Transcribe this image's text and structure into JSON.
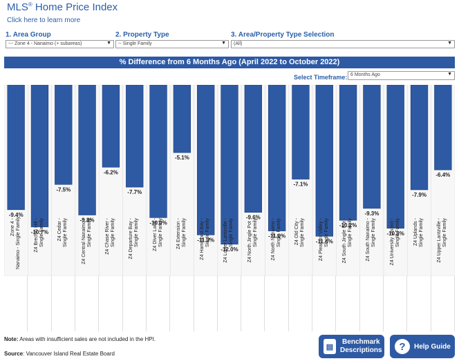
{
  "header": {
    "title": "MLS",
    "title_reg": "®",
    "title_rest": " Home Price Index",
    "learn_more": "Click here to learn more"
  },
  "filters": [
    {
      "num": "1.",
      "label": "Area Group",
      "value": "--- Zone 4 - Nanaimo (+ subareas)"
    },
    {
      "num": "2.",
      "label": "Property Type",
      "value": "-- Single Family"
    },
    {
      "num": "3.",
      "label": "Area/Property Type Selection",
      "value": "(All)"
    }
  ],
  "banner": "% Difference from 6 Months Ago (April 2022 to October 2022)",
  "timeframe": {
    "label": "Select Timeframe:",
    "value": "6 Months Ago"
  },
  "chart_data": {
    "type": "bar",
    "title": "% Difference from 6 Months Ago (April 2022 to October 2022)",
    "categories": [
      "Zone 4 - Nanaimo - Single Family",
      "Z4 Brechin Hill - Single Family",
      "Z4 Cedar - Single Family",
      "Z4 Central Nanaimo - Single Family",
      "Z4 Chase River - Single Family",
      "Z4 Departure Bay - Single Family",
      "Z4 Diver Lake - Single Family",
      "Z4 Extension - Single Family",
      "Z4 Hammond Bay - Single Family",
      "Z4 Lower Lantzville - Single Family",
      "Z4 North Jingle Pot - Single Family",
      "Z4 North Nanaimo - Single Family",
      "Z4 Old City - Single Family",
      "Z4 Pleasant Valley - Single Family",
      "Z4 South Jingle Pot - Single Family",
      "Z4 South Nanaimo - Single Family",
      "Z4 University District - Single Family",
      "Z4 Uplands - Single Family",
      "Z4 Upper Lantzville - Single Family"
    ],
    "values": [
      -9.4,
      -10.7,
      -7.5,
      -9.8,
      -6.2,
      -7.7,
      -10.0,
      -5.1,
      -11.3,
      -12.0,
      -9.6,
      -11.0,
      -7.1,
      -11.4,
      -10.2,
      -9.3,
      -10.8,
      -7.9,
      -6.4
    ],
    "value_labels": [
      "-9.4%",
      "-10.7%",
      "-7.5%",
      "-9.8%",
      "-6.2%",
      "-7.7%",
      "-10.0%",
      "-5.1%",
      "-11.3%",
      "-12.0%",
      "-9.6%",
      "-11.0%",
      "-7.1%",
      "-11.4%",
      "-10.2%",
      "-9.3%",
      "-10.8%",
      "-7.9%",
      "-6.4%"
    ],
    "ylim": [
      -14.4,
      0
    ],
    "bar_color": "#2e5aa4",
    "grid": false
  },
  "footer": {
    "note_bold": "Note:",
    "note_text": " Areas with insufficient sales are not included in the HPI.",
    "source_bold": "Source",
    "source_text": ": Vancouver Island Real Estate Board"
  },
  "buttons": {
    "benchmark_line1": "Benchmark",
    "benchmark_line2": "Descriptions",
    "help": "Help Guide"
  },
  "colors": {
    "accent": "#2e5aa4",
    "text_blue": "#2a5fa8"
  }
}
